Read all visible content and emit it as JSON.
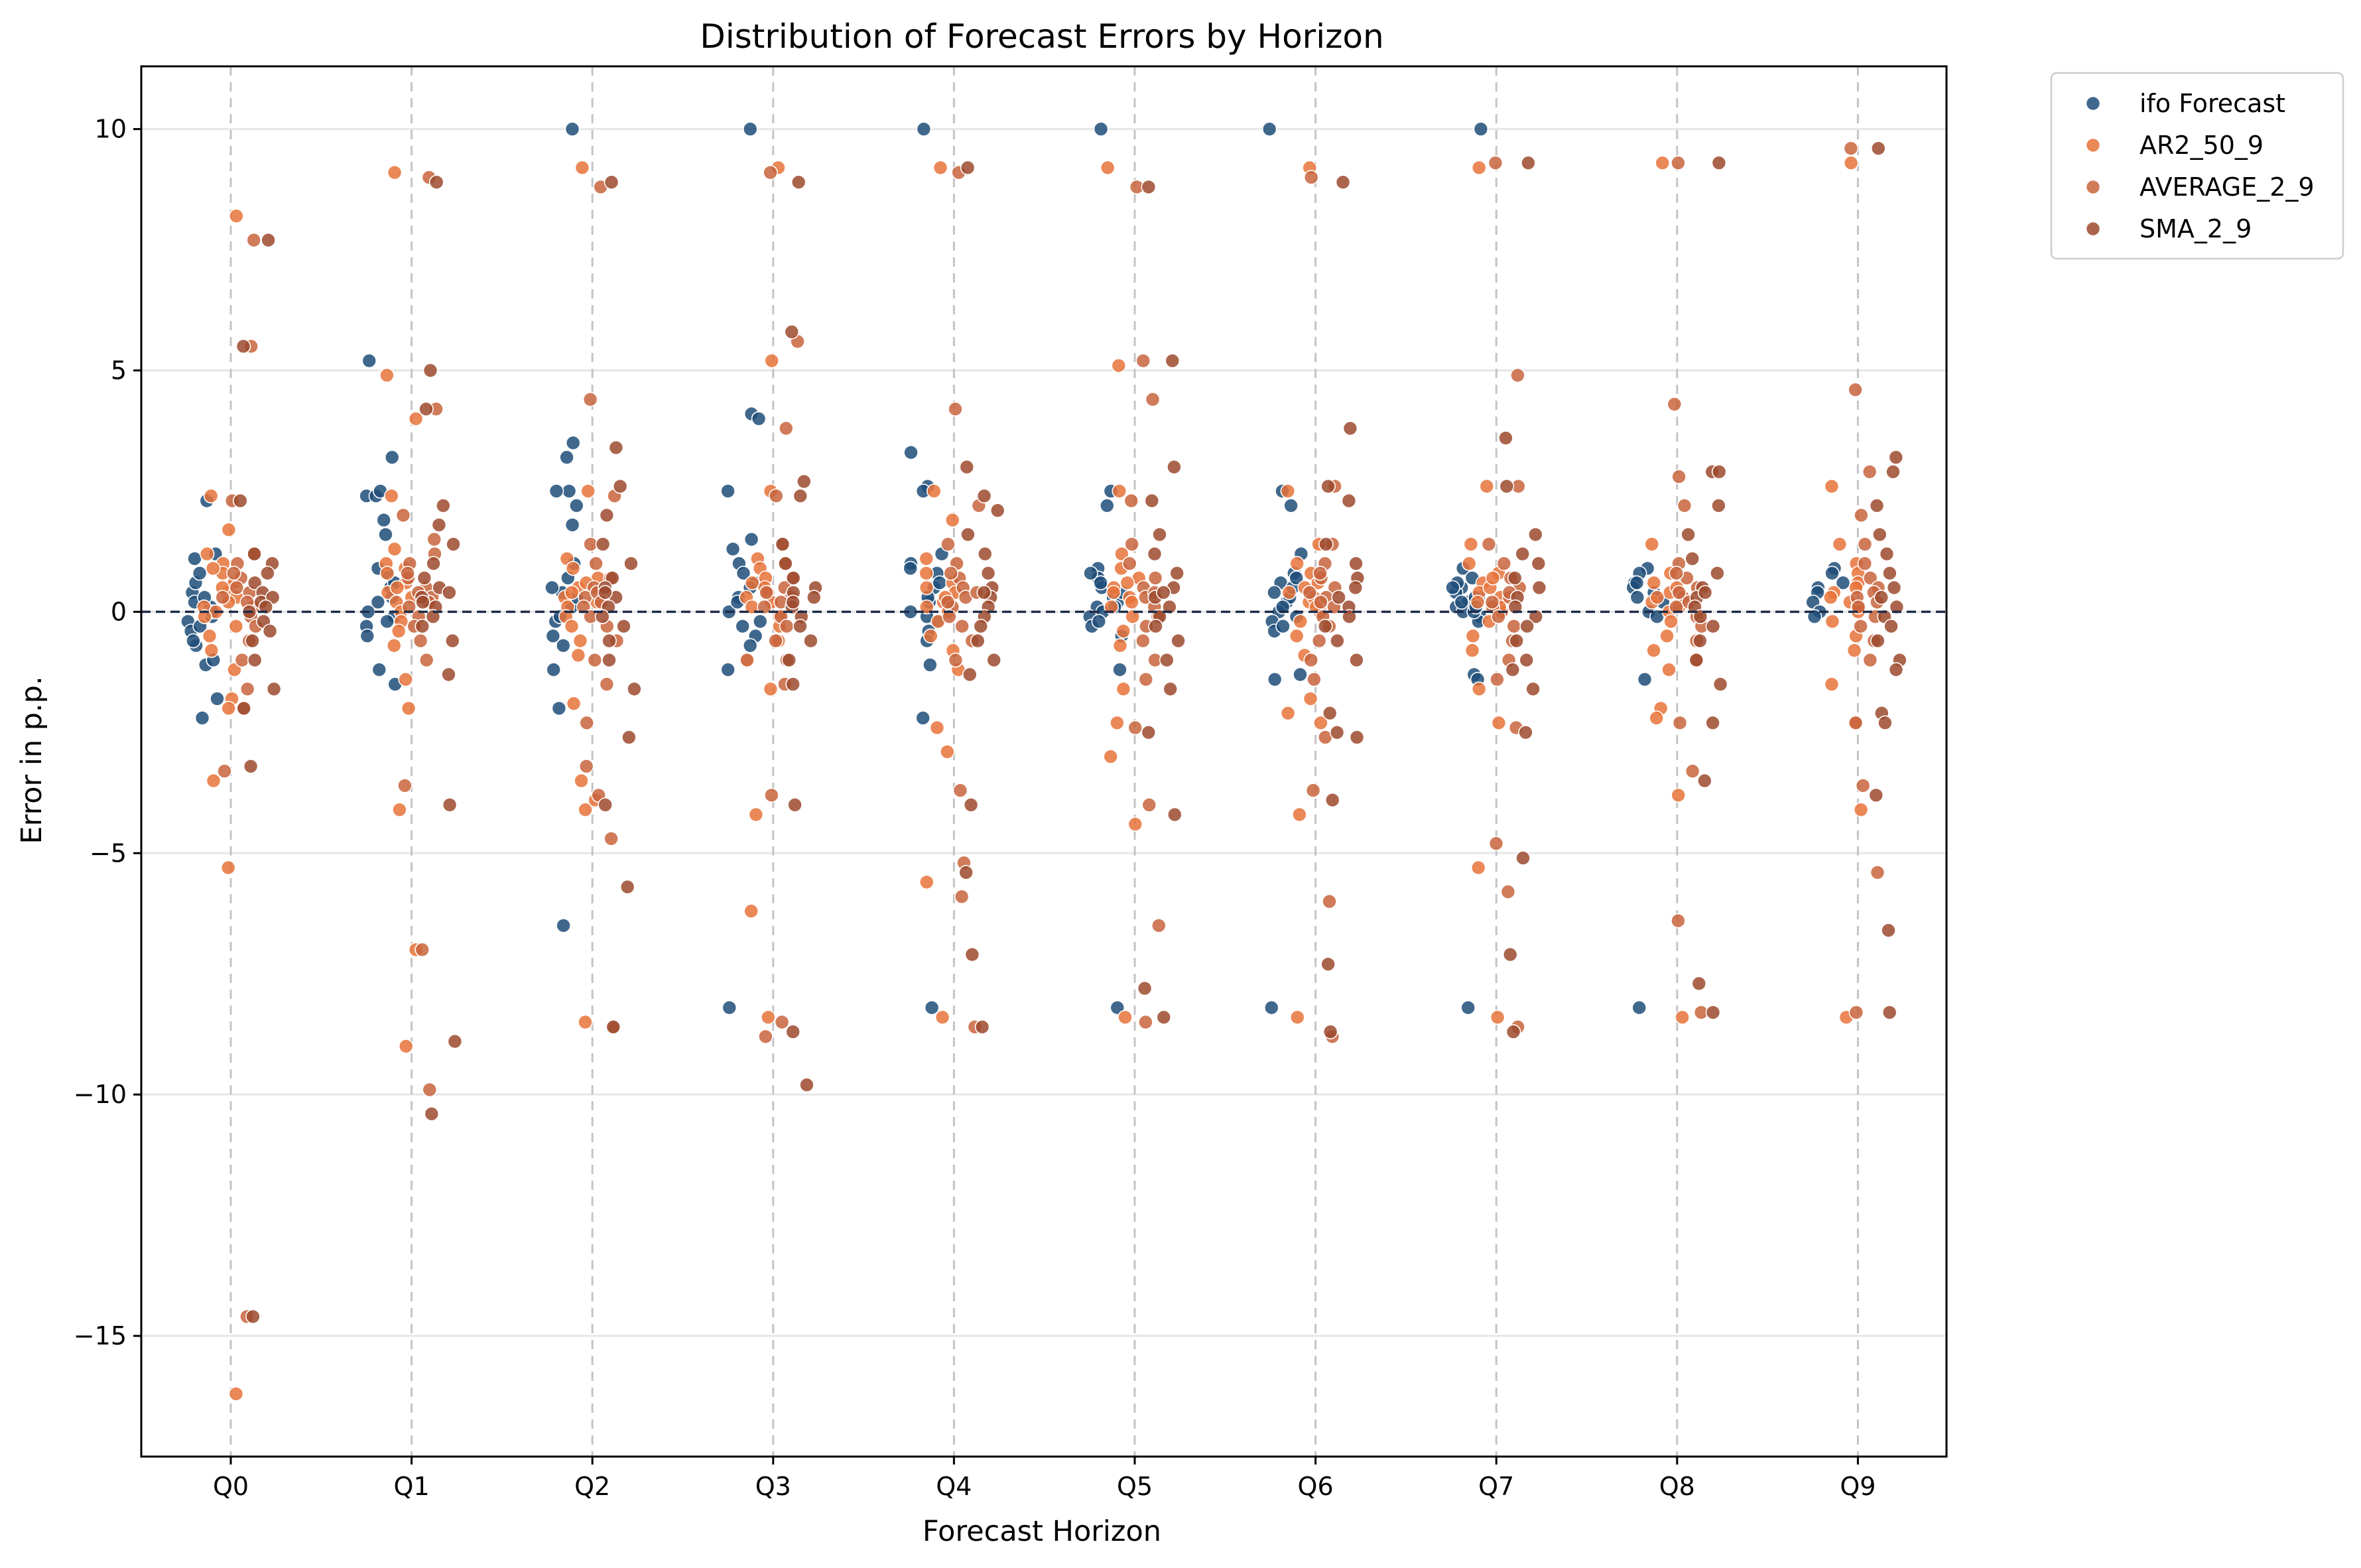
{
  "chart_data": {
    "type": "scatter",
    "title": "Distribution of Forecast Errors by Horizon",
    "xlabel": "Forecast Horizon",
    "ylabel": "Error in p.p.",
    "categories": [
      "Q0",
      "Q1",
      "Q2",
      "Q3",
      "Q4",
      "Q5",
      "Q6",
      "Q7",
      "Q8",
      "Q9"
    ],
    "ylim": [
      -17.5,
      11.3
    ],
    "yticks": [
      10,
      5,
      0,
      -5,
      -10,
      -15
    ],
    "ytick_labels": [
      "10",
      "5",
      "0",
      "−5",
      "−10",
      "−15"
    ],
    "grid": "horizontal gridlines plus dashed vertical lines at each category",
    "reference_line": {
      "y": 0,
      "style": "dashed",
      "color": "#1f2d4a"
    },
    "legend_position": "outside top-right",
    "series": [
      {
        "name": "ifo Forecast",
        "color": "#1f4e79",
        "points": [
          {
            "q": "Q0",
            "v": [
              2.3,
              1.2,
              1.1,
              -0.2,
              0.4,
              0.1,
              -0.4,
              0.6,
              -0.1,
              -0.7,
              -1.1,
              -1.0,
              -1.8,
              -2.2,
              0.2,
              -0.3,
              0.8,
              0.3,
              -0.6,
              0.0
            ]
          },
          {
            "q": "Q1",
            "v": [
              5.2,
              3.2,
              2.4,
              2.4,
              2.5,
              1.9,
              1.6,
              0.8,
              0.5,
              0.2,
              -0.1,
              -0.3,
              -0.5,
              -1.2,
              -1.5,
              0.0,
              0.3,
              -0.2,
              0.6,
              0.9
            ]
          },
          {
            "q": "Q2",
            "v": [
              10.0,
              3.5,
              3.2,
              2.5,
              2.5,
              2.2,
              1.8,
              1.0,
              0.7,
              0.4,
              0.1,
              -0.2,
              -0.5,
              -0.7,
              -1.2,
              -2.0,
              -6.5,
              0.3,
              -0.1,
              0.5
            ]
          },
          {
            "q": "Q3",
            "v": [
              10.0,
              4.1,
              4.0,
              2.5,
              1.5,
              1.3,
              1.0,
              0.6,
              0.3,
              0.0,
              -0.3,
              -0.5,
              -1.0,
              -1.2,
              -8.2,
              0.2,
              -0.2,
              0.8,
              0.5,
              -0.7
            ]
          },
          {
            "q": "Q4",
            "v": [
              10.0,
              3.3,
              2.6,
              2.5,
              1.2,
              1.0,
              0.8,
              0.5,
              0.2,
              0.0,
              -0.2,
              -0.4,
              -0.6,
              -1.1,
              -2.2,
              -8.2,
              0.3,
              -0.1,
              0.6,
              0.9
            ]
          },
          {
            "q": "Q5",
            "v": [
              10.0,
              2.5,
              2.2,
              0.9,
              0.7,
              0.5,
              0.3,
              0.1,
              -0.1,
              -0.3,
              -0.5,
              -1.2,
              -8.2,
              0.2,
              0.0,
              0.6,
              -0.2,
              0.4,
              0.8,
              0.1
            ]
          },
          {
            "q": "Q6",
            "v": [
              10.0,
              2.5,
              2.2,
              1.2,
              0.8,
              0.6,
              0.4,
              0.2,
              0.0,
              -0.2,
              -0.4,
              -1.3,
              -1.4,
              -8.2,
              0.3,
              -0.1,
              0.5,
              0.7,
              0.1,
              -0.3
            ]
          },
          {
            "q": "Q7",
            "v": [
              10.0,
              0.9,
              0.7,
              0.5,
              0.4,
              0.3,
              0.2,
              0.1,
              0.0,
              -0.1,
              -0.2,
              -1.3,
              -1.4,
              -8.2,
              0.6,
              0.3,
              0.0,
              0.2,
              0.5,
              0.1
            ]
          },
          {
            "q": "Q8",
            "v": [
              0.9,
              0.8,
              0.6,
              0.5,
              0.4,
              0.3,
              0.0,
              -0.1,
              -1.4,
              -8.2,
              0.2,
              0.6
            ]
          },
          {
            "q": "Q9",
            "v": [
              0.9,
              0.8,
              0.6,
              0.5,
              0.4,
              0.2,
              0.0,
              -0.1
            ]
          }
        ]
      },
      {
        "name": "AR2_50_9",
        "color": "#e8733a",
        "points": [
          {
            "q": "Q0",
            "v": [
              8.2,
              2.4,
              1.7,
              1.2,
              1.0,
              0.8,
              0.6,
              0.4,
              0.3,
              0.2,
              0.1,
              0.0,
              -0.1,
              -0.3,
              -0.5,
              -0.8,
              -1.2,
              -1.8,
              -2.0,
              -3.5,
              -5.3,
              -16.2,
              0.5,
              0.9
            ]
          },
          {
            "q": "Q1",
            "v": [
              9.1,
              4.9,
              4.0,
              2.4,
              1.3,
              1.0,
              0.8,
              0.6,
              0.4,
              0.2,
              0.0,
              -0.2,
              -0.4,
              -0.7,
              -1.4,
              -2.0,
              -4.1,
              -7.0,
              -9.0,
              0.5,
              0.3,
              0.9
            ]
          },
          {
            "q": "Q2",
            "v": [
              9.2,
              2.5,
              1.1,
              0.9,
              0.7,
              0.5,
              0.3,
              0.1,
              -0.1,
              -0.3,
              -0.6,
              -0.9,
              -1.9,
              -3.5,
              -3.9,
              -4.1,
              -8.5,
              0.2,
              0.6,
              0.4
            ]
          },
          {
            "q": "Q3",
            "v": [
              9.2,
              5.2,
              2.5,
              1.1,
              0.9,
              0.7,
              0.5,
              0.3,
              0.1,
              -0.1,
              -0.3,
              -0.6,
              -1.0,
              -1.6,
              -4.2,
              -6.2,
              -8.4,
              0.4,
              0.2,
              0.6
            ]
          },
          {
            "q": "Q4",
            "v": [
              9.2,
              2.5,
              1.9,
              1.1,
              0.8,
              0.6,
              0.4,
              0.2,
              0.0,
              -0.2,
              -0.5,
              -0.8,
              -1.2,
              -2.4,
              -2.9,
              -5.6,
              -8.4,
              0.3,
              0.5,
              0.1
            ]
          },
          {
            "q": "Q5",
            "v": [
              9.2,
              5.1,
              2.5,
              1.2,
              0.9,
              0.7,
              0.5,
              0.3,
              0.1,
              -0.1,
              -0.4,
              -0.7,
              -1.6,
              -2.3,
              -3.0,
              -4.4,
              -8.4,
              0.2,
              0.4,
              0.6
            ]
          },
          {
            "q": "Q6",
            "v": [
              9.2,
              2.5,
              1.4,
              1.0,
              0.8,
              0.6,
              0.4,
              0.2,
              0.0,
              -0.2,
              -0.5,
              -0.9,
              -1.8,
              -2.1,
              -2.3,
              -4.2,
              -8.4,
              0.3,
              0.1,
              0.5
            ]
          },
          {
            "q": "Q7",
            "v": [
              9.2,
              2.6,
              1.4,
              1.0,
              0.8,
              0.6,
              0.4,
              0.2,
              0.0,
              -0.2,
              -0.5,
              -0.8,
              -1.6,
              -2.3,
              -5.3,
              -8.4,
              0.3,
              0.1,
              0.5,
              0.7
            ]
          },
          {
            "q": "Q8",
            "v": [
              9.3,
              1.4,
              0.8,
              0.6,
              0.4,
              0.2,
              0.0,
              -0.2,
              -0.5,
              -0.8,
              -1.2,
              -2.0,
              -2.2,
              -3.8,
              -8.4,
              0.3,
              0.1,
              0.5
            ]
          },
          {
            "q": "Q9",
            "v": [
              9.3,
              2.6,
              1.4,
              1.0,
              0.8,
              0.6,
              0.4,
              0.2,
              0.0,
              -0.2,
              -0.5,
              -0.8,
              -1.5,
              -2.3,
              -4.1,
              -8.4,
              0.3,
              0.1,
              0.5
            ]
          }
        ]
      },
      {
        "name": "AVERAGE_2_9",
        "color": "#c8643c",
        "points": [
          {
            "q": "Q0",
            "v": [
              7.7,
              5.5,
              2.3,
              1.2,
              1.0,
              0.7,
              0.5,
              0.3,
              0.1,
              -0.1,
              -0.3,
              -0.6,
              -1.0,
              -1.6,
              -2.0,
              -3.3,
              -14.6,
              0.4,
              0.2,
              0.8
            ]
          },
          {
            "q": "Q1",
            "v": [
              9.0,
              4.2,
              2.0,
              1.5,
              1.0,
              0.7,
              0.5,
              0.3,
              0.1,
              -0.1,
              -0.3,
              -0.6,
              -1.0,
              -3.6,
              -7.0,
              -9.9,
              0.4,
              0.2,
              0.8,
              1.2
            ]
          },
          {
            "q": "Q2",
            "v": [
              8.8,
              4.4,
              2.4,
              1.4,
              1.0,
              0.7,
              0.5,
              0.3,
              0.1,
              -0.1,
              -0.3,
              -0.6,
              -1.0,
              -1.5,
              -2.3,
              -3.2,
              -3.8,
              -4.7,
              -8.6,
              0.4,
              0.2
            ]
          },
          {
            "q": "Q3",
            "v": [
              9.1,
              5.6,
              3.8,
              2.4,
              1.4,
              1.0,
              0.7,
              0.5,
              0.3,
              0.1,
              -0.1,
              -0.3,
              -0.6,
              -1.0,
              -1.5,
              -3.8,
              -8.5,
              -8.8,
              0.4,
              0.2
            ]
          },
          {
            "q": "Q4",
            "v": [
              9.1,
              4.2,
              2.2,
              1.4,
              1.0,
              0.7,
              0.5,
              0.3,
              0.1,
              -0.1,
              -0.3,
              -0.6,
              -1.0,
              -3.7,
              -5.2,
              -5.9,
              -8.6,
              0.4,
              0.2,
              0.8
            ]
          },
          {
            "q": "Q5",
            "v": [
              8.8,
              5.2,
              4.4,
              2.3,
              1.4,
              1.0,
              0.7,
              0.5,
              0.3,
              0.1,
              -0.1,
              -0.3,
              -0.6,
              -1.0,
              -1.4,
              -2.4,
              -4.0,
              -6.5,
              -8.5,
              0.4
            ]
          },
          {
            "q": "Q6",
            "v": [
              9.0,
              2.6,
              1.4,
              1.0,
              0.7,
              0.5,
              0.3,
              0.1,
              -0.1,
              -0.3,
              -0.6,
              -1.0,
              -1.4,
              -2.6,
              -3.7,
              -6.0,
              -8.8,
              0.4,
              0.2,
              0.8
            ]
          },
          {
            "q": "Q7",
            "v": [
              9.3,
              4.9,
              2.6,
              1.4,
              1.0,
              0.7,
              0.5,
              0.3,
              0.1,
              -0.1,
              -0.3,
              -0.6,
              -1.0,
              -1.4,
              -2.4,
              -4.8,
              -5.8,
              -8.6,
              0.4,
              0.2
            ]
          },
          {
            "q": "Q8",
            "v": [
              9.3,
              4.3,
              2.8,
              2.2,
              1.0,
              0.7,
              0.5,
              0.3,
              0.1,
              -0.1,
              -0.3,
              -0.6,
              -1.0,
              -2.3,
              -3.3,
              -6.4,
              -8.3,
              0.4,
              0.2,
              0.8
            ]
          },
          {
            "q": "Q9",
            "v": [
              9.6,
              4.6,
              2.9,
              2.0,
              1.4,
              1.0,
              0.7,
              0.5,
              0.3,
              0.1,
              -0.1,
              -0.3,
              -0.6,
              -1.0,
              -2.3,
              -3.6,
              -5.4,
              -8.3,
              0.4,
              0.2
            ]
          }
        ]
      },
      {
        "name": "SMA_2_9",
        "color": "#9c4a2e",
        "points": [
          {
            "q": "Q0",
            "v": [
              7.7,
              5.5,
              2.3,
              1.2,
              1.0,
              0.8,
              0.6,
              0.4,
              0.2,
              0.0,
              -0.2,
              -0.4,
              -0.6,
              -1.0,
              -1.6,
              -2.0,
              -3.2,
              -14.6,
              0.3,
              0.1
            ]
          },
          {
            "q": "Q1",
            "v": [
              8.9,
              5.0,
              4.2,
              2.2,
              1.8,
              1.4,
              1.0,
              0.7,
              0.5,
              0.3,
              0.1,
              -0.1,
              -0.3,
              -0.6,
              -1.3,
              -4.0,
              -8.9,
              -10.4,
              0.4,
              0.2
            ]
          },
          {
            "q": "Q2",
            "v": [
              8.9,
              3.4,
              2.6,
              2.0,
              1.4,
              1.0,
              0.7,
              0.5,
              0.3,
              0.1,
              -0.1,
              -0.3,
              -0.6,
              -1.0,
              -1.6,
              -2.6,
              -4.0,
              -5.7,
              -8.6,
              0.4
            ]
          },
          {
            "q": "Q3",
            "v": [
              8.9,
              5.8,
              2.7,
              2.4,
              1.4,
              1.0,
              0.7,
              0.5,
              0.3,
              0.1,
              -0.1,
              -0.3,
              -0.6,
              -1.0,
              -1.5,
              -4.0,
              -8.7,
              -9.8,
              0.4,
              0.2
            ]
          },
          {
            "q": "Q4",
            "v": [
              9.2,
              3.0,
              2.4,
              2.1,
              1.6,
              1.2,
              0.8,
              0.5,
              0.3,
              0.1,
              -0.1,
              -0.3,
              -0.6,
              -1.0,
              -1.3,
              -4.0,
              -5.4,
              -7.1,
              -8.6,
              0.4
            ]
          },
          {
            "q": "Q5",
            "v": [
              8.8,
              5.2,
              3.0,
              2.3,
              1.6,
              1.2,
              0.8,
              0.5,
              0.3,
              0.1,
              -0.1,
              -0.3,
              -0.6,
              -1.0,
              -1.6,
              -2.5,
              -4.2,
              -7.8,
              -8.4,
              0.4
            ]
          },
          {
            "q": "Q6",
            "v": [
              8.9,
              3.8,
              2.6,
              2.3,
              1.4,
              1.0,
              0.7,
              0.5,
              0.3,
              0.1,
              -0.1,
              -0.3,
              -0.6,
              -1.0,
              -2.1,
              -2.5,
              -2.6,
              -3.9,
              -7.3,
              -8.7
            ]
          },
          {
            "q": "Q7",
            "v": [
              9.3,
              3.6,
              2.6,
              1.6,
              1.2,
              1.0,
              0.7,
              0.5,
              0.3,
              0.1,
              -0.1,
              -0.3,
              -0.6,
              -1.0,
              -1.2,
              -1.6,
              -2.5,
              -5.1,
              -7.1,
              -8.7
            ]
          },
          {
            "q": "Q8",
            "v": [
              9.3,
              2.9,
              2.9,
              2.2,
              1.6,
              1.1,
              0.8,
              0.5,
              0.3,
              0.1,
              -0.1,
              -0.3,
              -0.6,
              -1.0,
              -1.5,
              -2.3,
              -3.5,
              -7.7,
              -8.3,
              0.4
            ]
          },
          {
            "q": "Q9",
            "v": [
              9.6,
              3.2,
              2.9,
              2.2,
              1.6,
              1.2,
              0.8,
              0.5,
              0.3,
              0.1,
              -0.1,
              -0.3,
              -0.6,
              -1.0,
              -1.2,
              -2.1,
              -2.3,
              -3.8,
              -6.6,
              -8.3
            ]
          }
        ]
      }
    ]
  }
}
